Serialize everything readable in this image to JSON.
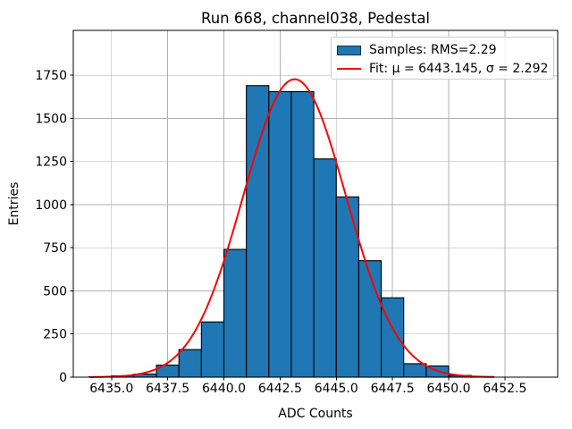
{
  "chart_data": {
    "type": "bar",
    "subtype": "histogram-with-gaussian-fit",
    "title": "Run 668, channel038, Pedestal",
    "xlabel": "ADC Counts",
    "ylabel": "Entries",
    "xlim": [
      6433.3,
      6454.85
    ],
    "ylim": [
      0,
      2010
    ],
    "xticks": [
      6435.0,
      6437.5,
      6440.0,
      6442.5,
      6445.0,
      6447.5,
      6450.0,
      6452.5
    ],
    "yticks": [
      0,
      250,
      500,
      750,
      1000,
      1250,
      1500,
      1750
    ],
    "grid": true,
    "histogram": {
      "bin_start": 6434,
      "bin_width": 1,
      "bin_edges": [
        6434,
        6435,
        6436,
        6437,
        6438,
        6439,
        6440,
        6441,
        6442,
        6443,
        6444,
        6445,
        6446,
        6447,
        6448,
        6449,
        6450,
        6451,
        6452
      ],
      "counts": [
        2,
        8,
        18,
        70,
        160,
        320,
        740,
        1690,
        1655,
        1655,
        1265,
        1045,
        675,
        460,
        78,
        65,
        10,
        3
      ],
      "fill_color": "#1f77b4",
      "edge_color": "#000000"
    },
    "fit": {
      "mu": 6443.145,
      "sigma": 2.292,
      "amplitude": 1727,
      "x_range": [
        6434.05,
        6452.0
      ],
      "color": "#ff0000",
      "linewidth": 2
    },
    "legend": {
      "position": "upper right",
      "entries": [
        {
          "marker": "patch",
          "label": "Samples: RMS=2.29"
        },
        {
          "marker": "line",
          "label": "Fit: μ = 6443.145, σ = 2.292"
        }
      ]
    },
    "colors": {
      "grid": "#b0b0b0",
      "background": "#ffffff",
      "text": "#000000",
      "spine": "#000000"
    },
    "stats": {
      "rms": 2.29
    }
  }
}
